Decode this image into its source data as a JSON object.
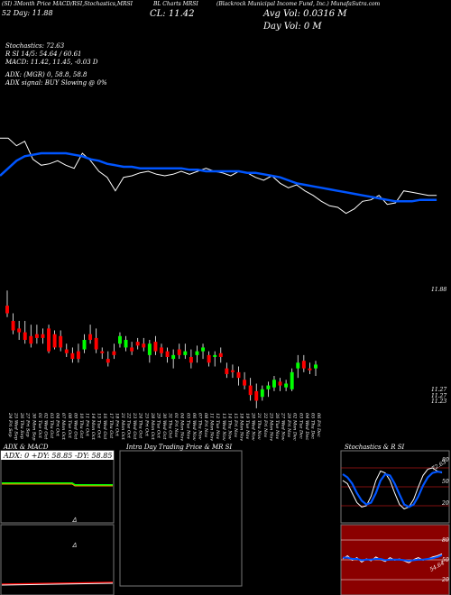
{
  "header": {
    "line1_left": "(SI) 3Month Price MACD/RSI,Stochastics,MRSI",
    "line1_mid": "BL Charts MRSI",
    "line1_right": "(Blackrock Municipal Income Fund, Inc.) MunafaSutra.com",
    "line2_left": "52 Day: 11.88",
    "line2_cl": "CL: 11.42",
    "avg_vol": "Avg Vol: 0.0316  M",
    "day_vol": "Day Vol: 0   M"
  },
  "indicators": {
    "stochastics": "Stochastics: 72.63",
    "rsi_line": "R         SI 14/5: 54.64  / 60.61",
    "macd": "MACD: 11.42,  11.45,  -0.03 D",
    "adx": "ADX:                   (MGR) 0,  58.8,  58.8",
    "adx_signal": "ADX  signal:                    BUY Slowing @ 0%"
  },
  "price_labels": {
    "top_right": "11.88",
    "low1": "11.27",
    "low2": "11.27",
    "low3": "11.23"
  },
  "dates": [
    "24 Fri Sep",
    "25 Wed Sep",
    "26 Thu Sep",
    "27 Fri Sep",
    "30 Mon Sep",
    "01 Tue Oct",
    "02 Wed Oct",
    "03 Thu Oct",
    "04 Fri Oct",
    "07 Mon Oct",
    "08 Tue Oct",
    "09 Wed Oct",
    "10 Thu Oct",
    "11 Fri Oct",
    "14 Mon Oct",
    "15 Tue Oct",
    "16 Wed Oct",
    "17 Thu Oct",
    "18 Fri Oct",
    "21 Mon Oct",
    "22 Tue Oct",
    "23 Wed Oct",
    "24 Thu Oct",
    "25 Fri Oct",
    "28 Mon Oct",
    "29 Tue Oct",
    "30 Wed Oct",
    "31 Thu Oct",
    "01 Fri Nov",
    "04 Mon Nov",
    "05 Tue Nov",
    "06 Wed Nov",
    "07 Thu Nov",
    "08 Fri Nov",
    "11 Mon Nov",
    "12 Tue Nov",
    "13 Wed Nov",
    "14 Thu Nov",
    "15 Fri Nov",
    "18 Mon Nov",
    "19 Tue Nov",
    "20 Wed Nov",
    "21 Thu Nov",
    "22 Fri Nov",
    "25 Mon Nov",
    "26 Tue Nov",
    "27 Wed Nov",
    "29 Fri Nov",
    "02 Mon Dec",
    "03 Tue Dec",
    "04 Wed Dec",
    "05 Thu Dec",
    "06 Fri Dec",
    "09 Mon Dec"
  ],
  "bottom_panels": {
    "adx_title": "ADX  & MACD",
    "adx_values": "ADX: 0   +DY: 58.85  -DY: 58.85",
    "intraday_title": "Intra  Day Trading Price  & MR                      SI",
    "stoch_title": "Stochastics & R                    SI",
    "stoch_ticks": [
      "80",
      "50",
      "20"
    ],
    "rsi_ticks": [
      "80",
      "50",
      "20"
    ],
    "stoch_value": "72.63",
    "rsi_value": "54.64"
  },
  "colors": {
    "bull": "#00ff00",
    "bear": "#ff0000",
    "ma": "#0055ff",
    "price_line": "#ffffff"
  },
  "chart_data": {
    "type": "candlestick",
    "title": "",
    "candles": [
      {
        "o": 11.7,
        "h": 11.78,
        "l": 11.64,
        "c": 11.66,
        "color": "red"
      },
      {
        "o": 11.62,
        "h": 11.66,
        "l": 11.55,
        "c": 11.57,
        "color": "red"
      },
      {
        "o": 11.58,
        "h": 11.62,
        "l": 11.52,
        "c": 11.56,
        "color": "red"
      },
      {
        "o": 11.56,
        "h": 11.62,
        "l": 11.5,
        "c": 11.52,
        "color": "red"
      },
      {
        "o": 11.54,
        "h": 11.6,
        "l": 11.48,
        "c": 11.5,
        "color": "red"
      },
      {
        "o": 11.55,
        "h": 11.6,
        "l": 11.5,
        "c": 11.53,
        "color": "red"
      },
      {
        "o": 11.55,
        "h": 11.58,
        "l": 11.5,
        "c": 11.53,
        "color": "red"
      },
      {
        "o": 11.58,
        "h": 11.6,
        "l": 11.45,
        "c": 11.46,
        "color": "red"
      },
      {
        "o": 11.55,
        "h": 11.57,
        "l": 11.47,
        "c": 11.48,
        "color": "red"
      },
      {
        "o": 11.54,
        "h": 11.57,
        "l": 11.46,
        "c": 11.48,
        "color": "red"
      },
      {
        "o": 11.47,
        "h": 11.5,
        "l": 11.43,
        "c": 11.45,
        "color": "red"
      },
      {
        "o": 11.45,
        "h": 11.48,
        "l": 11.4,
        "c": 11.42,
        "color": "red"
      },
      {
        "o": 11.46,
        "h": 11.5,
        "l": 11.4,
        "c": 11.42,
        "color": "red"
      },
      {
        "o": 11.47,
        "h": 11.55,
        "l": 11.45,
        "c": 11.52,
        "color": "green"
      },
      {
        "o": 11.55,
        "h": 11.6,
        "l": 11.5,
        "c": 11.52,
        "color": "red"
      },
      {
        "o": 11.53,
        "h": 11.58,
        "l": 11.45,
        "c": 11.47,
        "color": "red"
      },
      {
        "o": 11.46,
        "h": 11.48,
        "l": 11.42,
        "c": 11.45,
        "color": "red"
      },
      {
        "o": 11.42,
        "h": 11.46,
        "l": 11.38,
        "c": 11.4,
        "color": "red"
      },
      {
        "o": 11.46,
        "h": 11.5,
        "l": 11.42,
        "c": 11.44,
        "color": "red"
      },
      {
        "o": 11.5,
        "h": 11.56,
        "l": 11.48,
        "c": 11.54,
        "color": "green"
      },
      {
        "o": 11.48,
        "h": 11.54,
        "l": 11.46,
        "c": 11.52,
        "color": "green"
      },
      {
        "o": 11.48,
        "h": 11.51,
        "l": 11.44,
        "c": 11.46,
        "color": "red"
      },
      {
        "o": 11.51,
        "h": 11.53,
        "l": 11.47,
        "c": 11.49,
        "color": "red"
      },
      {
        "o": 11.5,
        "h": 11.53,
        "l": 11.46,
        "c": 11.48,
        "color": "red"
      },
      {
        "o": 11.44,
        "h": 11.52,
        "l": 11.4,
        "c": 11.5,
        "color": "green"
      },
      {
        "o": 11.51,
        "h": 11.54,
        "l": 11.44,
        "c": 11.46,
        "color": "red"
      },
      {
        "o": 11.48,
        "h": 11.5,
        "l": 11.43,
        "c": 11.45,
        "color": "red"
      },
      {
        "o": 11.46,
        "h": 11.48,
        "l": 11.4,
        "c": 11.43,
        "color": "red"
      },
      {
        "o": 11.42,
        "h": 11.47,
        "l": 11.37,
        "c": 11.44,
        "color": "green"
      },
      {
        "o": 11.47,
        "h": 11.5,
        "l": 11.42,
        "c": 11.44,
        "color": "red"
      },
      {
        "o": 11.44,
        "h": 11.5,
        "l": 11.42,
        "c": 11.46,
        "color": "green"
      },
      {
        "o": 11.43,
        "h": 11.47,
        "l": 11.37,
        "c": 11.4,
        "color": "red"
      },
      {
        "o": 11.44,
        "h": 11.49,
        "l": 11.4,
        "c": 11.46,
        "color": "green"
      },
      {
        "o": 11.46,
        "h": 11.5,
        "l": 11.42,
        "c": 11.48,
        "color": "green"
      },
      {
        "o": 11.44,
        "h": 11.46,
        "l": 11.38,
        "c": 11.4,
        "color": "red"
      },
      {
        "o": 11.43,
        "h": 11.46,
        "l": 11.38,
        "c": 11.44,
        "color": "green"
      },
      {
        "o": 11.45,
        "h": 11.48,
        "l": 11.4,
        "c": 11.43,
        "color": "red"
      },
      {
        "o": 11.37,
        "h": 11.4,
        "l": 11.32,
        "c": 11.34,
        "color": "red"
      },
      {
        "o": 11.36,
        "h": 11.39,
        "l": 11.32,
        "c": 11.35,
        "color": "red"
      },
      {
        "o": 11.35,
        "h": 11.38,
        "l": 11.28,
        "c": 11.32,
        "color": "red"
      },
      {
        "o": 11.31,
        "h": 11.35,
        "l": 11.26,
        "c": 11.28,
        "color": "red"
      },
      {
        "o": 11.28,
        "h": 11.32,
        "l": 11.2,
        "c": 11.23,
        "color": "red"
      },
      {
        "o": 11.25,
        "h": 11.29,
        "l": 11.16,
        "c": 11.2,
        "color": "red"
      },
      {
        "o": 11.22,
        "h": 11.28,
        "l": 11.2,
        "c": 11.26,
        "color": "green"
      },
      {
        "o": 11.26,
        "h": 11.3,
        "l": 11.22,
        "c": 11.28,
        "color": "green"
      },
      {
        "o": 11.27,
        "h": 11.33,
        "l": 11.25,
        "c": 11.31,
        "color": "green"
      },
      {
        "o": 11.3,
        "h": 11.32,
        "l": 11.25,
        "c": 11.28,
        "color": "red"
      },
      {
        "o": 11.27,
        "h": 11.31,
        "l": 11.25,
        "c": 11.29,
        "color": "green"
      },
      {
        "o": 11.26,
        "h": 11.37,
        "l": 11.25,
        "c": 11.35,
        "color": "green"
      },
      {
        "o": 11.37,
        "h": 11.44,
        "l": 11.32,
        "c": 11.4,
        "color": "green"
      },
      {
        "o": 11.41,
        "h": 11.44,
        "l": 11.35,
        "c": 11.37,
        "color": "red"
      },
      {
        "o": 11.37,
        "h": 11.4,
        "l": 11.34,
        "c": 11.36,
        "color": "red"
      },
      {
        "o": 11.37,
        "h": 11.41,
        "l": 11.33,
        "c": 11.39,
        "color": "green"
      }
    ],
    "price_line": [
      11.8,
      11.8,
      11.75,
      11.78,
      11.66,
      11.62,
      11.63,
      11.65,
      11.62,
      11.6,
      11.7,
      11.65,
      11.58,
      11.54,
      11.45,
      11.54,
      11.55,
      11.57,
      11.58,
      11.56,
      11.55,
      11.56,
      11.58,
      11.56,
      11.58,
      11.6,
      11.58,
      11.57,
      11.55,
      11.58,
      11.57,
      11.54,
      11.52,
      11.55,
      11.5,
      11.47,
      11.49,
      11.45,
      11.42,
      11.38,
      11.35,
      11.34,
      11.3,
      11.33,
      11.38,
      11.39,
      11.42,
      11.36,
      11.37,
      11.45,
      11.44,
      11.43,
      11.42,
      11.42
    ],
    "ma_line": [
      11.55,
      11.6,
      11.65,
      11.68,
      11.69,
      11.7,
      11.7,
      11.7,
      11.7,
      11.69,
      11.68,
      11.66,
      11.65,
      11.63,
      11.62,
      11.61,
      11.61,
      11.6,
      11.6,
      11.6,
      11.6,
      11.6,
      11.6,
      11.59,
      11.59,
      11.58,
      11.58,
      11.58,
      11.58,
      11.58,
      11.57,
      11.57,
      11.56,
      11.55,
      11.54,
      11.52,
      11.5,
      11.49,
      11.48,
      11.47,
      11.46,
      11.45,
      11.44,
      11.43,
      11.42,
      11.41,
      11.4,
      11.39,
      11.38,
      11.38,
      11.38,
      11.39,
      11.39,
      11.39
    ]
  }
}
